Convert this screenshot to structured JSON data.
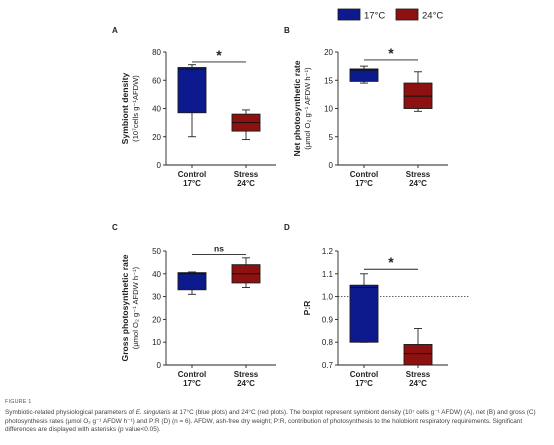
{
  "legend": {
    "items": [
      {
        "label": "17°C",
        "color": "#0d1a8e"
      },
      {
        "label": "24°C",
        "color": "#8e1111"
      }
    ]
  },
  "chart_data": [
    {
      "id": "A",
      "type": "box",
      "letter": "A",
      "ylabel_lines": [
        "Symbiont density",
        "(10⁷cells g⁻¹AFDW)"
      ],
      "ylim": [
        0,
        80
      ],
      "yticks": [
        0,
        20,
        40,
        60,
        80
      ],
      "categories": [
        [
          "Control",
          "17°C"
        ],
        [
          "Stress",
          "24°C"
        ]
      ],
      "boxes": [
        {
          "min": 20,
          "q1": 37,
          "median": 68,
          "q3": 69,
          "max": 71,
          "color": "#0d1a8e",
          "fill": "#0d1a8e"
        },
        {
          "min": 18,
          "q1": 24,
          "median": 30,
          "q3": 36,
          "max": 39,
          "color": "#1a1a1a",
          "fill": "#8e1111"
        }
      ],
      "significance": "*",
      "sig_y": 73,
      "reference_line": null
    },
    {
      "id": "B",
      "type": "box",
      "letter": "B",
      "ylabel_lines": [
        "Net photosynthetic rate",
        "(µmol O₂ g⁻¹ AFDW h⁻¹)"
      ],
      "ylim": [
        0,
        20
      ],
      "yticks": [
        0,
        5,
        10,
        15,
        20
      ],
      "categories": [
        [
          "Control",
          "17°C"
        ],
        [
          "Stress",
          "24°C"
        ]
      ],
      "boxes": [
        {
          "min": 14.5,
          "q1": 14.8,
          "median": 16.8,
          "q3": 17.0,
          "max": 17.5,
          "color": "#0d1a8e",
          "fill": "#0d1a8e"
        },
        {
          "min": 9.5,
          "q1": 10.0,
          "median": 12.2,
          "q3": 14.5,
          "max": 16.5,
          "color": "#1a1a1a",
          "fill": "#8e1111"
        }
      ],
      "significance": "*",
      "sig_y": 18.6,
      "reference_line": null
    },
    {
      "id": "C",
      "type": "box",
      "letter": "C",
      "ylabel_lines": [
        "Gross photosynthetic rate",
        "(µmol O₂ g⁻¹ AFDW h⁻¹)"
      ],
      "ylim": [
        0,
        50
      ],
      "yticks": [
        0,
        10,
        20,
        30,
        40,
        50
      ],
      "categories": [
        [
          "Control",
          "17°C"
        ],
        [
          "Stress",
          "24°C"
        ]
      ],
      "boxes": [
        {
          "min": 31,
          "q1": 33,
          "median": 40,
          "q3": 40.5,
          "max": 40.8,
          "color": "#0d1a8e",
          "fill": "#0d1a8e"
        },
        {
          "min": 34,
          "q1": 36,
          "median": 40,
          "q3": 44,
          "max": 47,
          "color": "#1a1a1a",
          "fill": "#8e1111"
        }
      ],
      "significance": "ns",
      "sig_y": 48.5,
      "reference_line": null
    },
    {
      "id": "D",
      "type": "box",
      "letter": "D",
      "ylabel_lines": [
        "P:R"
      ],
      "ylim": [
        0.7,
        1.2
      ],
      "yticks": [
        0.7,
        0.8,
        0.9,
        1.0,
        1.1,
        1.2
      ],
      "categories": [
        [
          "Control",
          "17°C"
        ],
        [
          "Stress",
          "24°C"
        ]
      ],
      "boxes": [
        {
          "min": 0.8,
          "q1": 0.8,
          "median": 1.04,
          "q3": 1.05,
          "max": 1.1,
          "color": "#0d1a8e",
          "fill": "#0d1a8e"
        },
        {
          "min": 0.7,
          "q1": 0.7,
          "median": 0.75,
          "q3": 0.79,
          "max": 0.86,
          "color": "#1a1a1a",
          "fill": "#8e1111"
        }
      ],
      "significance": "*",
      "sig_y": 1.12,
      "reference_line": 1.0
    }
  ],
  "caption": {
    "label": "FIGURE 1",
    "text_1": "Symbiotic-related physiological parameters of ",
    "species": "E. singularis",
    "text_2": " at 17°C (blue plots) and 24°C (red plots). The boxplot represent symbiont density (10⁷ cells g⁻¹ AFDW) (A), net (B) and gross (C) photosynthesis rates (µmol O₂ g⁻¹ AFDW h⁻¹) and P:R (D) (n = 6). AFDW, ash-free dry weight; P:R, contribution of photosynthesis to the holobiont respiratory requirements. Significant differences are displayed with asterisks (p value<0.05)."
  }
}
